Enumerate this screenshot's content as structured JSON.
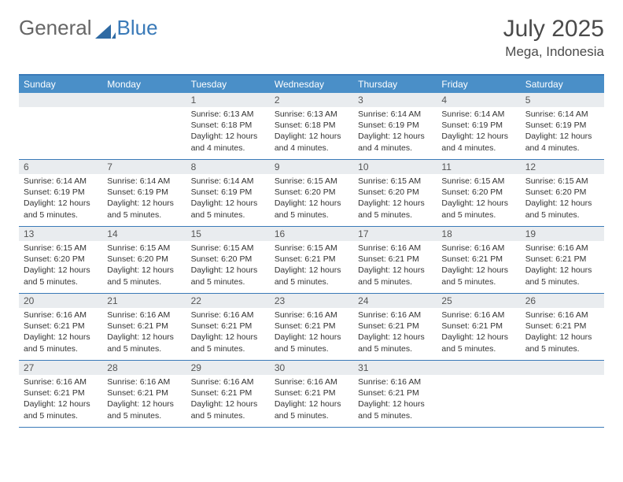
{
  "brand": {
    "word1": "General",
    "word2": "Blue"
  },
  "title": "July 2025",
  "location": "Mega, Indonesia",
  "header_color": "#4a8fc8",
  "border_color": "#3a7ab8",
  "daynum_bg": "#e9ecef",
  "text_color": "#333333",
  "dow": [
    "Sunday",
    "Monday",
    "Tuesday",
    "Wednesday",
    "Thursday",
    "Friday",
    "Saturday"
  ],
  "weeks": [
    [
      null,
      null,
      {
        "n": "1",
        "sr": "6:13 AM",
        "ss": "6:18 PM",
        "dl": "12 hours and 4 minutes."
      },
      {
        "n": "2",
        "sr": "6:13 AM",
        "ss": "6:18 PM",
        "dl": "12 hours and 4 minutes."
      },
      {
        "n": "3",
        "sr": "6:14 AM",
        "ss": "6:19 PM",
        "dl": "12 hours and 4 minutes."
      },
      {
        "n": "4",
        "sr": "6:14 AM",
        "ss": "6:19 PM",
        "dl": "12 hours and 4 minutes."
      },
      {
        "n": "5",
        "sr": "6:14 AM",
        "ss": "6:19 PM",
        "dl": "12 hours and 4 minutes."
      }
    ],
    [
      {
        "n": "6",
        "sr": "6:14 AM",
        "ss": "6:19 PM",
        "dl": "12 hours and 5 minutes."
      },
      {
        "n": "7",
        "sr": "6:14 AM",
        "ss": "6:19 PM",
        "dl": "12 hours and 5 minutes."
      },
      {
        "n": "8",
        "sr": "6:14 AM",
        "ss": "6:19 PM",
        "dl": "12 hours and 5 minutes."
      },
      {
        "n": "9",
        "sr": "6:15 AM",
        "ss": "6:20 PM",
        "dl": "12 hours and 5 minutes."
      },
      {
        "n": "10",
        "sr": "6:15 AM",
        "ss": "6:20 PM",
        "dl": "12 hours and 5 minutes."
      },
      {
        "n": "11",
        "sr": "6:15 AM",
        "ss": "6:20 PM",
        "dl": "12 hours and 5 minutes."
      },
      {
        "n": "12",
        "sr": "6:15 AM",
        "ss": "6:20 PM",
        "dl": "12 hours and 5 minutes."
      }
    ],
    [
      {
        "n": "13",
        "sr": "6:15 AM",
        "ss": "6:20 PM",
        "dl": "12 hours and 5 minutes."
      },
      {
        "n": "14",
        "sr": "6:15 AM",
        "ss": "6:20 PM",
        "dl": "12 hours and 5 minutes."
      },
      {
        "n": "15",
        "sr": "6:15 AM",
        "ss": "6:20 PM",
        "dl": "12 hours and 5 minutes."
      },
      {
        "n": "16",
        "sr": "6:15 AM",
        "ss": "6:21 PM",
        "dl": "12 hours and 5 minutes."
      },
      {
        "n": "17",
        "sr": "6:16 AM",
        "ss": "6:21 PM",
        "dl": "12 hours and 5 minutes."
      },
      {
        "n": "18",
        "sr": "6:16 AM",
        "ss": "6:21 PM",
        "dl": "12 hours and 5 minutes."
      },
      {
        "n": "19",
        "sr": "6:16 AM",
        "ss": "6:21 PM",
        "dl": "12 hours and 5 minutes."
      }
    ],
    [
      {
        "n": "20",
        "sr": "6:16 AM",
        "ss": "6:21 PM",
        "dl": "12 hours and 5 minutes."
      },
      {
        "n": "21",
        "sr": "6:16 AM",
        "ss": "6:21 PM",
        "dl": "12 hours and 5 minutes."
      },
      {
        "n": "22",
        "sr": "6:16 AM",
        "ss": "6:21 PM",
        "dl": "12 hours and 5 minutes."
      },
      {
        "n": "23",
        "sr": "6:16 AM",
        "ss": "6:21 PM",
        "dl": "12 hours and 5 minutes."
      },
      {
        "n": "24",
        "sr": "6:16 AM",
        "ss": "6:21 PM",
        "dl": "12 hours and 5 minutes."
      },
      {
        "n": "25",
        "sr": "6:16 AM",
        "ss": "6:21 PM",
        "dl": "12 hours and 5 minutes."
      },
      {
        "n": "26",
        "sr": "6:16 AM",
        "ss": "6:21 PM",
        "dl": "12 hours and 5 minutes."
      }
    ],
    [
      {
        "n": "27",
        "sr": "6:16 AM",
        "ss": "6:21 PM",
        "dl": "12 hours and 5 minutes."
      },
      {
        "n": "28",
        "sr": "6:16 AM",
        "ss": "6:21 PM",
        "dl": "12 hours and 5 minutes."
      },
      {
        "n": "29",
        "sr": "6:16 AM",
        "ss": "6:21 PM",
        "dl": "12 hours and 5 minutes."
      },
      {
        "n": "30",
        "sr": "6:16 AM",
        "ss": "6:21 PM",
        "dl": "12 hours and 5 minutes."
      },
      {
        "n": "31",
        "sr": "6:16 AM",
        "ss": "6:21 PM",
        "dl": "12 hours and 5 minutes."
      },
      null,
      null
    ]
  ],
  "labels": {
    "sunrise": "Sunrise:",
    "sunset": "Sunset:",
    "daylight": "Daylight:"
  }
}
